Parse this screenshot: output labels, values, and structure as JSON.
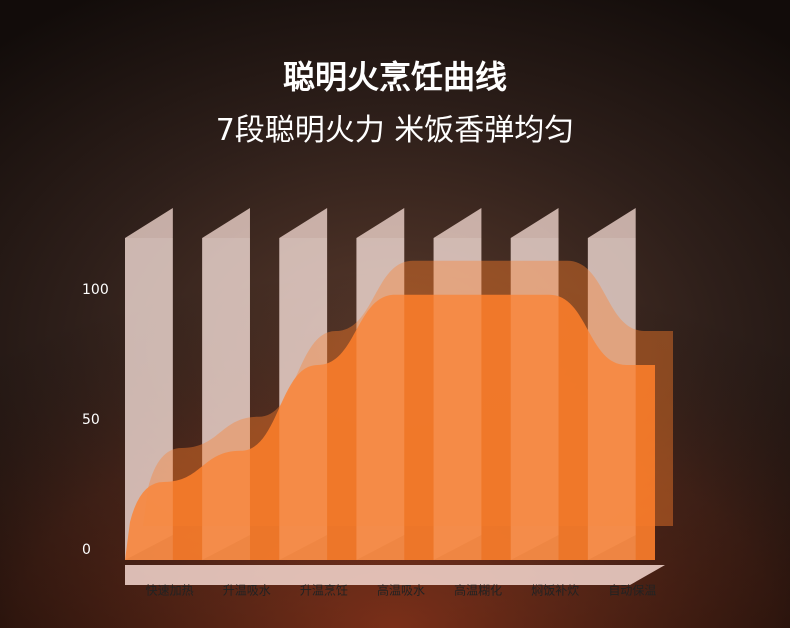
{
  "chart_data": {
    "type": "area",
    "title": "聪明火烹饪曲线",
    "subtitle": "7段聪明火力 米饭香弹均匀",
    "categories": [
      "快速加热",
      "升温吸水",
      "升温烹饪",
      "高温吸水",
      "高温糊化",
      "焖饭补炊",
      "自动保温"
    ],
    "values": [
      30,
      42,
      75,
      102,
      102,
      102,
      75
    ],
    "color": "#f47a2a",
    "ylim": [
      0,
      120
    ],
    "yticks": [
      0,
      50,
      100
    ]
  }
}
